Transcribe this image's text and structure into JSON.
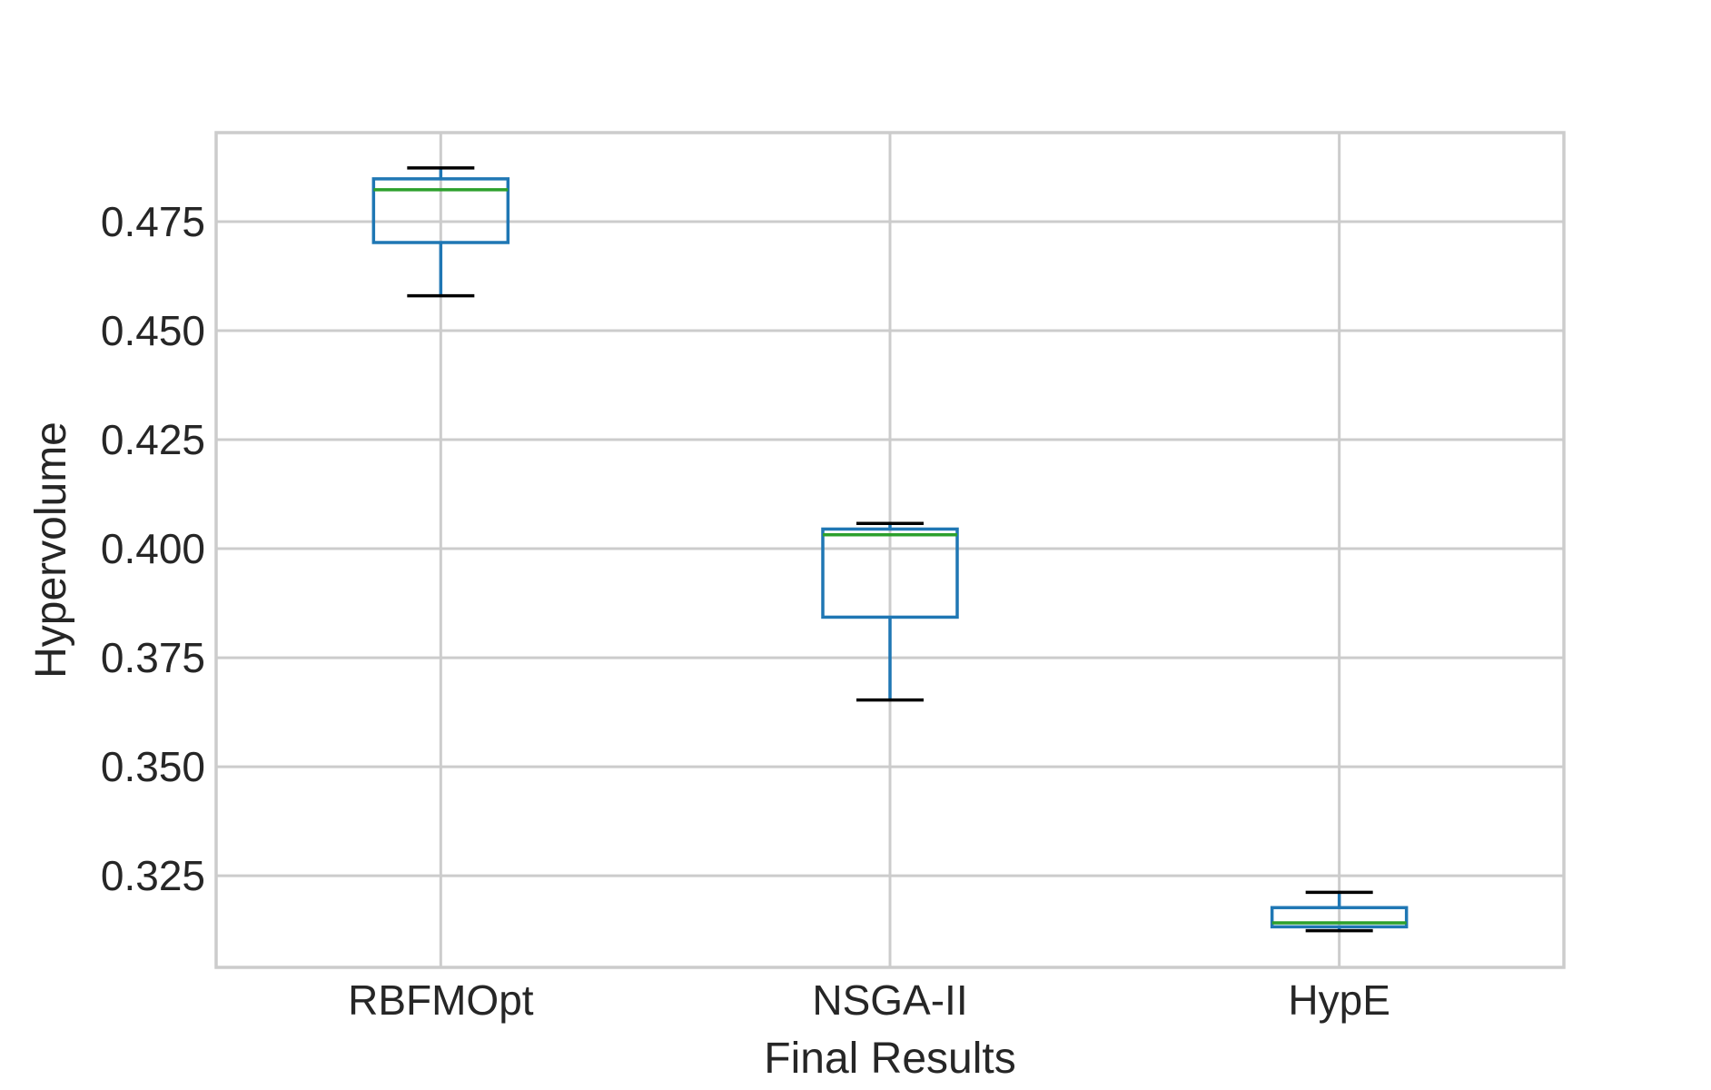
{
  "chart_data": {
    "type": "box",
    "title": "",
    "xlabel": "Final Results",
    "ylabel": "Hypervolume",
    "categories": [
      "RBFMOpt",
      "NSGA-II",
      "HypE"
    ],
    "boxes": [
      {
        "category": "RBFMOpt",
        "whislo": 0.458,
        "q1": 0.4702,
        "median": 0.4823,
        "q3": 0.4848,
        "whishi": 0.4873
      },
      {
        "category": "NSGA-II",
        "whislo": 0.3653,
        "q1": 0.3843,
        "median": 0.4032,
        "q3": 0.4045,
        "whishi": 0.4058
      },
      {
        "category": "HypE",
        "whislo": 0.3124,
        "q1": 0.3133,
        "median": 0.3142,
        "q3": 0.3177,
        "whishi": 0.3212
      }
    ],
    "yticks": [
      0.325,
      0.35,
      0.375,
      0.4,
      0.425,
      0.45,
      0.475
    ],
    "ytick_labels": [
      "0.325",
      "0.350",
      "0.375",
      "0.400",
      "0.425",
      "0.450",
      "0.475"
    ],
    "ylim": [
      0.304,
      0.4954
    ],
    "grid": true,
    "legend": "none",
    "colors": {
      "box": "#1f77b4",
      "median": "#2ca02c",
      "whisker": "#1f77b4",
      "cap": "#000000",
      "grid": "#cccccc",
      "text": "#262626"
    }
  }
}
